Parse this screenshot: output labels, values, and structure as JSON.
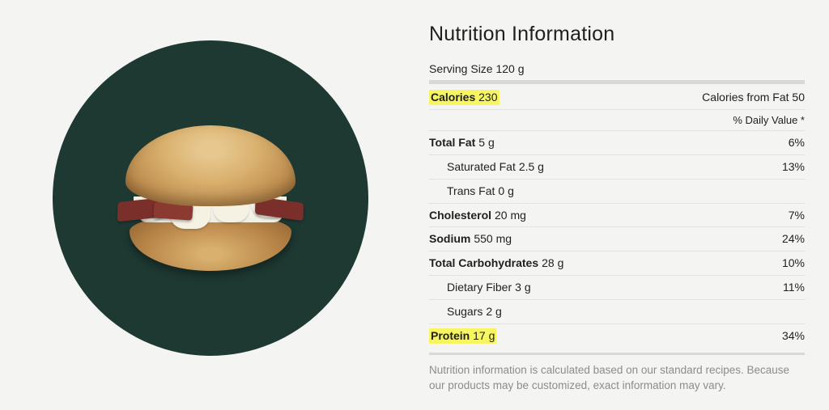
{
  "title": "Nutrition Information",
  "serving_prefix": "Serving Size",
  "serving_value": "120 g",
  "calories_row": {
    "label": "Calories",
    "value": "230",
    "right": "Calories from Fat 50",
    "highlight": true
  },
  "daily_value_header": "% Daily Value *",
  "rows": [
    {
      "label": "Total Fat",
      "value": "5 g",
      "pct": "6%",
      "indent": false
    },
    {
      "label": "Saturated Fat",
      "value": "2.5 g",
      "pct": "13%",
      "indent": true
    },
    {
      "label": "Trans Fat",
      "value": "0 g",
      "pct": "",
      "indent": true
    },
    {
      "label": "Cholesterol",
      "value": "20 mg",
      "pct": "7%",
      "indent": false
    },
    {
      "label": "Sodium",
      "value": "550 mg",
      "pct": "24%",
      "indent": false
    },
    {
      "label": "Total Carbohydrates",
      "value": "28 g",
      "pct": "10%",
      "indent": false
    },
    {
      "label": "Dietary Fiber",
      "value": "3 g",
      "pct": "11%",
      "indent": true
    },
    {
      "label": "Sugars",
      "value": "2 g",
      "pct": "",
      "indent": true
    }
  ],
  "protein_row": {
    "label": "Protein",
    "value": "17 g",
    "pct": "34%",
    "highlight": true
  },
  "footnote": "Nutrition information is calculated based on our standard recipes. Because our products may be customized, exact information may vary.",
  "circle_bg": "#1e3932",
  "highlight_color": "#f7f562"
}
